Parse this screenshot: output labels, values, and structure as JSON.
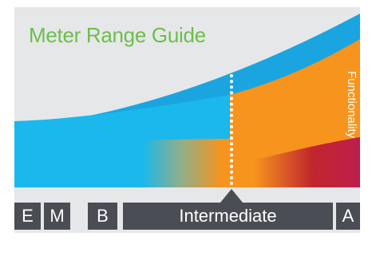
{
  "title": "Meter Range Guide",
  "axis_label": "Functionality",
  "colors": {
    "background": "#e6e7e8",
    "title": "#6dbe4b",
    "curve": "#1aa5e0",
    "band_blue": "#1ab8ec",
    "band_orange": "#f7941d",
    "band_crimson": "#c1272d",
    "marker": "#ffffff",
    "bar": "#4a4d53",
    "bar_text": "#ffffff"
  },
  "segments": [
    {
      "label": "E"
    },
    {
      "label": "M"
    },
    {
      "label": "B"
    },
    {
      "label": "Intermediate"
    },
    {
      "label": "A"
    }
  ]
}
